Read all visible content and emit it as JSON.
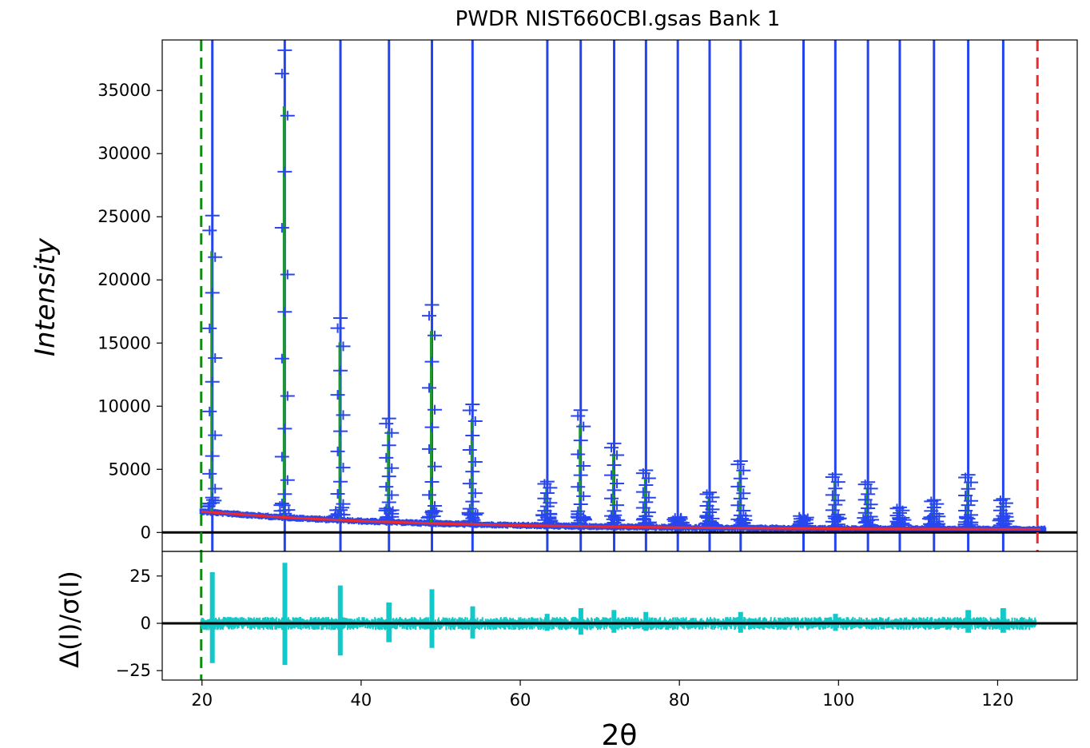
{
  "chart_data": {
    "type": "line",
    "title": "PWDR NIST660CBI.gsas Bank 1",
    "xlabel": "2θ",
    "xlim": [
      15,
      130
    ],
    "xticks": [
      20,
      40,
      60,
      80,
      100,
      120
    ],
    "panels": {
      "main": {
        "ylabel": "Intensity",
        "ylim": [
          -1500,
          39000
        ],
        "yticks": [
          0,
          5000,
          10000,
          15000,
          20000,
          25000,
          30000,
          35000
        ],
        "background": {
          "x": [
            20,
            30,
            40,
            50,
            60,
            70,
            80,
            90,
            100,
            110,
            120,
            125
          ],
          "y": [
            1650,
            1200,
            900,
            700,
            560,
            460,
            390,
            340,
            300,
            280,
            260,
            250
          ]
        },
        "peaks": [
          {
            "x": 21.3,
            "height": 23500
          },
          {
            "x": 30.4,
            "height": 37000
          },
          {
            "x": 37.4,
            "height": 16000
          },
          {
            "x": 43.5,
            "height": 8200
          },
          {
            "x": 48.9,
            "height": 17300
          },
          {
            "x": 54.0,
            "height": 9500
          },
          {
            "x": 63.4,
            "height": 3500
          },
          {
            "x": 67.6,
            "height": 9200
          },
          {
            "x": 71.8,
            "height": 6600
          },
          {
            "x": 75.8,
            "height": 4500
          },
          {
            "x": 79.8,
            "height": 800
          },
          {
            "x": 83.8,
            "height": 2800
          },
          {
            "x": 87.7,
            "height": 5300
          },
          {
            "x": 95.6,
            "height": 800
          },
          {
            "x": 99.6,
            "height": 4300
          },
          {
            "x": 103.7,
            "height": 3700
          },
          {
            "x": 107.7,
            "height": 1700
          },
          {
            "x": 112.0,
            "height": 2300
          },
          {
            "x": 116.3,
            "height": 4300
          },
          {
            "x": 120.7,
            "height": 2400
          }
        ],
        "reflection_markers": [
          21.3,
          30.4,
          37.4,
          43.5,
          48.9,
          54.0,
          63.4,
          67.6,
          71.8,
          75.8,
          79.8,
          83.8,
          87.7,
          95.6,
          99.6,
          103.7,
          107.7,
          112.0,
          116.3,
          120.7
        ],
        "limits": {
          "lower": 19.9,
          "upper": 125.0
        },
        "zero_line": 0
      },
      "diff": {
        "ylabel": "Δ(I)/σ(I)",
        "ylim": [
          -30,
          38
        ],
        "yticks": [
          -25,
          0,
          25
        ],
        "spikes": [
          {
            "x": 21.3,
            "up": 27,
            "down": -21
          },
          {
            "x": 30.4,
            "up": 32,
            "down": -22
          },
          {
            "x": 37.4,
            "up": 20,
            "down": -17
          },
          {
            "x": 43.5,
            "up": 11,
            "down": -10
          },
          {
            "x": 48.9,
            "up": 18,
            "down": -13
          },
          {
            "x": 54.0,
            "up": 9,
            "down": -8
          },
          {
            "x": 63.4,
            "up": 5,
            "down": -4
          },
          {
            "x": 67.6,
            "up": 8,
            "down": -6
          },
          {
            "x": 71.8,
            "up": 7,
            "down": -5
          },
          {
            "x": 75.8,
            "up": 6,
            "down": -4
          },
          {
            "x": 87.7,
            "up": 6,
            "down": -5
          },
          {
            "x": 99.6,
            "up": 5,
            "down": -4
          },
          {
            "x": 116.3,
            "up": 7,
            "down": -5
          },
          {
            "x": 120.7,
            "up": 8,
            "down": -5
          }
        ]
      }
    },
    "colors": {
      "observed": "#2846ee",
      "calculated": "#1a9a2c",
      "background": "#ee2a2a",
      "reflections": "#2344ee",
      "difference": "#13c8c8",
      "lower_limit": "#118a11",
      "upper_limit": "#ee2a2a",
      "zero_line": "#000000"
    }
  }
}
